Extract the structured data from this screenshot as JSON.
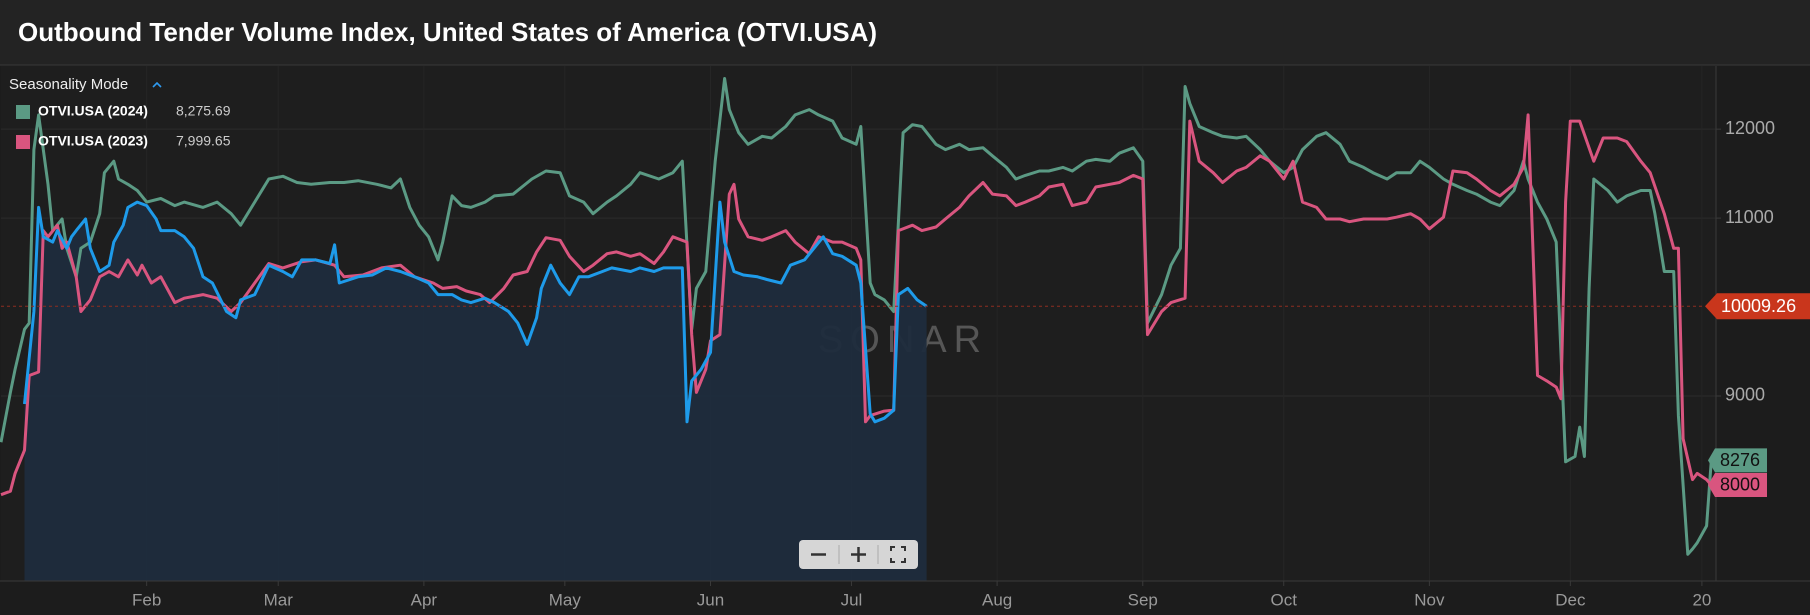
{
  "mode_label": "Seasonality Mode",
  "watermark": "SONAR",
  "chart_data": {
    "type": "line",
    "title": "Outbound Tender Volume Index, United States of America (OTVI.USA)",
    "xlim": [
      0,
      365
    ],
    "xticks": [
      {
        "value": 31,
        "label": "Feb"
      },
      {
        "value": 59,
        "label": "Mar"
      },
      {
        "value": 90,
        "label": "Apr"
      },
      {
        "value": 120,
        "label": "May"
      },
      {
        "value": 151,
        "label": "Jun"
      },
      {
        "value": 181,
        "label": "Jul"
      },
      {
        "value": 212,
        "label": "Aug"
      },
      {
        "value": 243,
        "label": "Sep"
      },
      {
        "value": 273,
        "label": "Oct"
      },
      {
        "value": 304,
        "label": "Nov"
      },
      {
        "value": 334,
        "label": "Dec"
      },
      {
        "value": 362,
        "label": "20"
      }
    ],
    "ylim": [
      6920,
      12710
    ],
    "yticks": [
      9000,
      11000,
      12000
    ],
    "grid": true,
    "series": [
      {
        "name": "OTVI.USA (2024)",
        "color": "#5b9a84",
        "latest": {
          "legend": "8,275.69",
          "tag": "8276"
        },
        "x": [
          0,
          2,
          3,
          5,
          6,
          7,
          8,
          10,
          11,
          13,
          14,
          16,
          17,
          19,
          21,
          22,
          24,
          25,
          27,
          29,
          31,
          34,
          37,
          39,
          43,
          46,
          49,
          51,
          54,
          57,
          60,
          63,
          66,
          70,
          73,
          76,
          80,
          83,
          85,
          87,
          89,
          91,
          93,
          94,
          96,
          98,
          100,
          103,
          105,
          109,
          113,
          116,
          119,
          121,
          124,
          126,
          129,
          131,
          134,
          136,
          140,
          143,
          145,
          147,
          148,
          150,
          152,
          154,
          155,
          157,
          159,
          162,
          164,
          167,
          169,
          172,
          174,
          177,
          179,
          182,
          183,
          185,
          186,
          188,
          190,
          192,
          194,
          196,
          199,
          201,
          204,
          206,
          209,
          211,
          214,
          216,
          218,
          221,
          223,
          226,
          228,
          231,
          233,
          236,
          238,
          241,
          243,
          244,
          247,
          249,
          251,
          252,
          253,
          255,
          258,
          260,
          263,
          265,
          268,
          270,
          273,
          275,
          277,
          280,
          282,
          285,
          287,
          290,
          292,
          295,
          297,
          300,
          302,
          304,
          307,
          309,
          312,
          314,
          317,
          319,
          322,
          324,
          325,
          327,
          329,
          331,
          333,
          335,
          336,
          337,
          338,
          339,
          342,
          344,
          346,
          349,
          351,
          352,
          354,
          356,
          357,
          359,
          360,
          361,
          363,
          364
        ],
        "values": [
          8480,
          9040,
          9300,
          9750,
          9820,
          11770,
          12160,
          11380,
          10860,
          10990,
          10660,
          10340,
          10660,
          10730,
          11050,
          11510,
          11640,
          11440,
          11380,
          11310,
          11180,
          11220,
          11140,
          11180,
          11120,
          11180,
          11050,
          10920,
          11180,
          11440,
          11470,
          11400,
          11380,
          11400,
          11400,
          11420,
          11380,
          11340,
          11440,
          11120,
          10920,
          10790,
          10530,
          10730,
          11250,
          11140,
          11120,
          11180,
          11250,
          11270,
          11440,
          11530,
          11510,
          11250,
          11180,
          11050,
          11180,
          11250,
          11380,
          11510,
          11440,
          11510,
          11640,
          9750,
          10210,
          10400,
          11640,
          12570,
          12220,
          11960,
          11830,
          11920,
          11900,
          12030,
          12160,
          12220,
          12160,
          12090,
          11900,
          11830,
          12030,
          10270,
          10140,
          10080,
          9950,
          11960,
          12050,
          12030,
          11830,
          11770,
          11830,
          11770,
          11790,
          11700,
          11570,
          11440,
          11480,
          11530,
          11530,
          11570,
          11530,
          11640,
          11660,
          11640,
          11730,
          11790,
          11640,
          9820,
          10140,
          10470,
          10660,
          12480,
          12290,
          12030,
          11960,
          11920,
          11900,
          11920,
          11770,
          11640,
          11510,
          11570,
          11770,
          11920,
          11960,
          11830,
          11640,
          11570,
          11510,
          11440,
          11510,
          11510,
          11640,
          11570,
          11440,
          11380,
          11310,
          11270,
          11180,
          11140,
          11310,
          11640,
          11440,
          11180,
          10990,
          10730,
          8260,
          8320,
          8650,
          8320,
          10210,
          11440,
          11310,
          11180,
          11250,
          11310,
          11310,
          11050,
          10400,
          10400,
          8780,
          7220,
          7280,
          7350,
          7540,
          8275.69
        ]
      },
      {
        "name": "OTVI.USA (2023)",
        "color": "#d9557f",
        "latest": {
          "legend": "7,999.65",
          "tag": "8000"
        },
        "x": [
          0,
          2,
          3,
          5,
          6,
          8,
          9,
          10,
          12,
          13,
          14,
          16,
          17,
          19,
          21,
          23,
          25,
          27,
          29,
          30,
          32,
          34,
          37,
          39,
          43,
          46,
          49,
          51,
          54,
          57,
          60,
          64,
          67,
          71,
          73,
          77,
          81,
          85,
          88,
          92,
          94,
          97,
          99,
          102,
          104,
          107,
          109,
          112,
          114,
          116,
          119,
          121,
          124,
          126,
          129,
          131,
          134,
          136,
          139,
          141,
          143,
          146,
          147,
          148,
          150,
          151,
          153,
          155,
          156,
          157,
          159,
          162,
          164,
          167,
          169,
          172,
          174,
          177,
          179,
          182,
          183,
          184,
          185,
          188,
          190,
          191,
          194,
          196,
          199,
          201,
          204,
          206,
          209,
          211,
          214,
          216,
          218,
          221,
          223,
          226,
          228,
          231,
          233,
          236,
          238,
          241,
          243,
          244,
          247,
          249,
          252,
          253,
          255,
          258,
          260,
          263,
          265,
          268,
          270,
          273,
          275,
          277,
          280,
          282,
          285,
          287,
          290,
          292,
          295,
          297,
          300,
          302,
          304,
          307,
          309,
          312,
          314,
          317,
          319,
          322,
          324,
          325,
          327,
          329,
          331,
          332,
          333,
          334,
          336,
          339,
          341,
          344,
          346,
          349,
          351,
          354,
          356,
          357,
          358,
          360,
          361,
          363,
          364
        ],
        "values": [
          7890,
          7930,
          8130,
          8390,
          9230,
          9270,
          10860,
          10790,
          10920,
          10660,
          10730,
          10340,
          9950,
          10080,
          10340,
          10400,
          10340,
          10530,
          10360,
          10470,
          10270,
          10340,
          10050,
          10100,
          10140,
          10100,
          9950,
          10050,
          10270,
          10490,
          10440,
          10510,
          10530,
          10470,
          10340,
          10360,
          10440,
          10470,
          10340,
          10270,
          10210,
          10230,
          10180,
          10140,
          10050,
          10210,
          10360,
          10400,
          10620,
          10780,
          10750,
          10570,
          10400,
          10470,
          10600,
          10620,
          10570,
          10600,
          10490,
          10620,
          10790,
          10730,
          9690,
          9040,
          9300,
          9620,
          9690,
          11270,
          11380,
          10990,
          10790,
          10750,
          10790,
          10860,
          10730,
          10600,
          10790,
          10730,
          10730,
          10660,
          10530,
          8710,
          8780,
          8830,
          8840,
          10860,
          10920,
          10860,
          10900,
          10990,
          11120,
          11250,
          11400,
          11270,
          11250,
          11140,
          11180,
          11250,
          11350,
          11380,
          11140,
          11180,
          11350,
          11380,
          11400,
          11480,
          11440,
          9690,
          9950,
          10050,
          10100,
          12090,
          11640,
          11510,
          11400,
          11530,
          11570,
          11700,
          11640,
          11440,
          11640,
          11180,
          11120,
          10990,
          10990,
          10960,
          10990,
          10990,
          10990,
          11010,
          11050,
          10990,
          10880,
          11010,
          11530,
          11510,
          11440,
          11310,
          11250,
          11380,
          11570,
          12160,
          9230,
          9170,
          9100,
          8970,
          11180,
          12090,
          12090,
          11640,
          11900,
          11900,
          11860,
          11640,
          11510,
          11050,
          10660,
          10660,
          8520,
          8060,
          8130,
          8060,
          7999.65
        ]
      },
      {
        "color": "#1e9bea",
        "area": true,
        "area_color": "#1f2c3d",
        "tag_color": "#c9361c",
        "x": [
          5,
          7,
          8,
          9,
          11,
          12,
          14,
          15,
          16,
          18,
          19,
          21,
          23,
          24,
          26,
          27,
          29,
          31,
          33,
          34,
          37,
          39,
          41,
          43,
          45,
          48,
          50,
          51,
          54,
          57,
          60,
          62,
          64,
          67,
          70,
          71,
          72,
          76,
          79,
          82,
          85,
          88,
          91,
          93,
          96,
          98,
          100,
          103,
          105,
          108,
          110,
          112,
          114,
          115,
          117,
          119,
          121,
          123,
          125,
          128,
          130,
          134,
          136,
          139,
          141,
          145,
          146,
          147,
          149,
          151,
          153,
          154,
          156,
          158,
          161,
          163,
          166,
          168,
          171,
          173,
          175,
          177,
          179,
          182,
          183,
          185,
          186,
          188,
          190,
          191,
          193,
          195,
          197
        ],
        "values": [
          8910,
          9950,
          11120,
          10790,
          10730,
          10860,
          10660,
          10790,
          10860,
          10990,
          10660,
          10400,
          10470,
          10730,
          10920,
          11120,
          11180,
          11140,
          10990,
          10860,
          10860,
          10790,
          10660,
          10340,
          10270,
          9950,
          9880,
          10080,
          10140,
          10470,
          10400,
          10340,
          10530,
          10530,
          10490,
          10700,
          10270,
          10340,
          10360,
          10440,
          10400,
          10340,
          10270,
          10140,
          10140,
          10080,
          10050,
          10100,
          10050,
          9950,
          9820,
          9580,
          9880,
          10210,
          10470,
          10270,
          10140,
          10340,
          10340,
          10400,
          10440,
          10400,
          10440,
          10400,
          10440,
          10440,
          8710,
          9170,
          9300,
          9490,
          11180,
          10730,
          10400,
          10360,
          10340,
          10310,
          10270,
          10470,
          10530,
          10660,
          10790,
          10600,
          10570,
          10470,
          10270,
          8800,
          8710,
          8750,
          8840,
          10140,
          10210,
          10080,
          10009.26
        ]
      }
    ]
  }
}
